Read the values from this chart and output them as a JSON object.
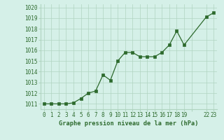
{
  "x": [
    0,
    1,
    2,
    3,
    4,
    5,
    6,
    7,
    8,
    9,
    10,
    11,
    12,
    13,
    14,
    15,
    16,
    17,
    18,
    19,
    22,
    23
  ],
  "y": [
    1011.0,
    1011.0,
    1011.0,
    1011.0,
    1011.1,
    1011.5,
    1012.0,
    1012.2,
    1013.7,
    1013.2,
    1015.0,
    1015.8,
    1015.8,
    1015.4,
    1015.4,
    1015.4,
    1015.8,
    1016.5,
    1017.8,
    1016.5,
    1019.1,
    1019.5
  ],
  "line_color": "#2d6a2d",
  "marker": "s",
  "marker_size": 2.5,
  "bg_color": "#d5f0e8",
  "grid_color": "#b0d4c0",
  "xlabel": "Graphe pression niveau de la mer (hPa)",
  "xlabel_color": "#2d6a2d",
  "tick_color": "#2d6a2d",
  "xlim": [
    -0.5,
    23.5
  ],
  "ylim": [
    1010.5,
    1020.3
  ],
  "yticks": [
    1011,
    1012,
    1013,
    1014,
    1015,
    1016,
    1017,
    1018,
    1019,
    1020
  ],
  "xtick_labels": [
    "0",
    "1",
    "2",
    "3",
    "4",
    "5",
    "6",
    "7",
    "8",
    "9",
    "10",
    "11",
    "12",
    "13",
    "14",
    "15",
    "16",
    "17",
    "18",
    "19",
    "",
    "22",
    "23"
  ],
  "xtick_positions": [
    0,
    1,
    2,
    3,
    4,
    5,
    6,
    7,
    8,
    9,
    10,
    11,
    12,
    13,
    14,
    15,
    16,
    17,
    18,
    19,
    20,
    22,
    23
  ],
  "font_family": "monospace",
  "tick_fontsize": 5.5,
  "xlabel_fontsize": 6.2
}
